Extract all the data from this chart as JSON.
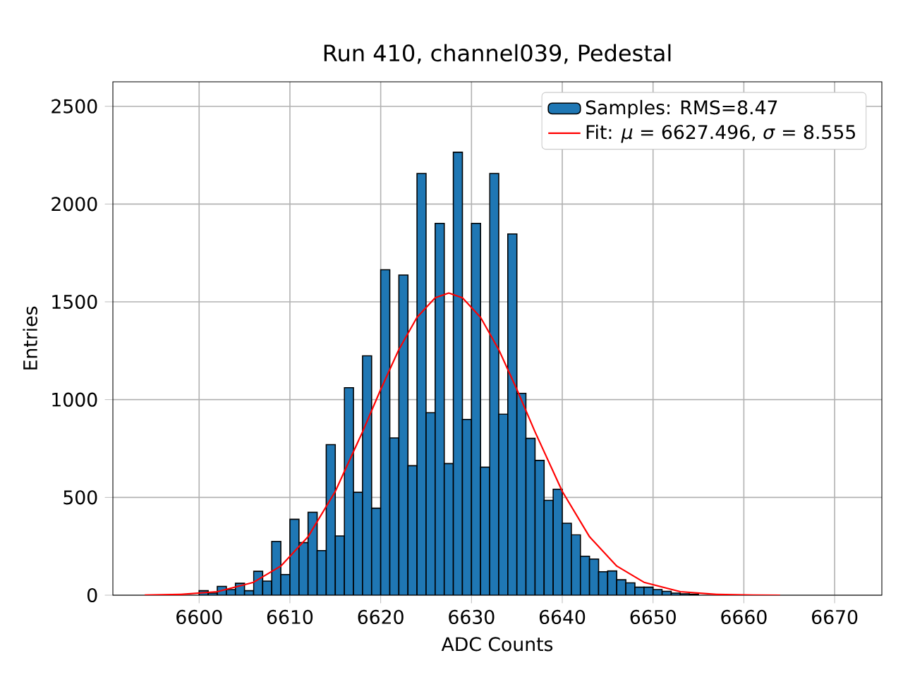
{
  "chart_data": {
    "type": "histogram",
    "title": "Run 410, channel039, Pedestal",
    "xlabel": "ADC Counts",
    "ylabel": "Entries",
    "bins": [
      6600,
      6601,
      6602,
      6603,
      6604,
      6605,
      6606,
      6607,
      6608,
      6609,
      6610,
      6611,
      6612,
      6613,
      6614,
      6615,
      6616,
      6617,
      6618,
      6619,
      6620,
      6621,
      6622,
      6623,
      6624,
      6625,
      6626,
      6627,
      6628,
      6629,
      6630,
      6631,
      6632,
      6633,
      6634,
      6635,
      6636,
      6637,
      6638,
      6639,
      6640,
      6641,
      6642,
      6643,
      6644,
      6645,
      6646,
      6647,
      6648,
      6649,
      6650,
      6651,
      6652,
      6653,
      6654,
      6655
    ],
    "series": [
      {
        "name": "Samples: RMS=8.47",
        "color": "#1f77b4",
        "values": [
          23,
          11,
          45,
          29,
          61,
          23,
          122,
          72,
          275,
          106,
          388,
          269,
          424,
          228,
          770,
          303,
          1061,
          526,
          1224,
          445,
          1664,
          804,
          1637,
          662,
          2156,
          933,
          1901,
          673,
          2265,
          899,
          1901,
          655,
          2156,
          926,
          1847,
          1032,
          802,
          689,
          485,
          542,
          368,
          309,
          199,
          185,
          120,
          124,
          79,
          63,
          41,
          41,
          29,
          20,
          11,
          7,
          5
        ]
      },
      {
        "type": "line",
        "name": "Fit: *μ* = 6627.496, *σ* = 8.555",
        "color": "#ff0000",
        "x": [
          6594,
          6598,
          6602,
          6606,
          6609,
          6612,
          6615,
          6618,
          6620,
          6622,
          6624,
          6626,
          6627.5,
          6629,
          6631,
          6633,
          6635,
          6637,
          6640,
          6643,
          6646,
          6649,
          6653,
          6657,
          6661,
          6664
        ],
        "values": [
          1,
          4,
          18,
          66,
          149,
          299,
          531,
          835,
          1052,
          1256,
          1421,
          1521,
          1545,
          1521,
          1421,
          1256,
          1052,
          835,
          531,
          299,
          149,
          66,
          18,
          4,
          1,
          0
        ]
      }
    ],
    "xlim": [
      6590.5,
      6675.2
    ],
    "ylim": [
      0,
      2625
    ],
    "xticks": [
      6600,
      6610,
      6620,
      6630,
      6640,
      6650,
      6660,
      6670
    ],
    "yticks": [
      0,
      500,
      1000,
      1500,
      2000,
      2500
    ],
    "grid": true,
    "legend": "top right"
  }
}
